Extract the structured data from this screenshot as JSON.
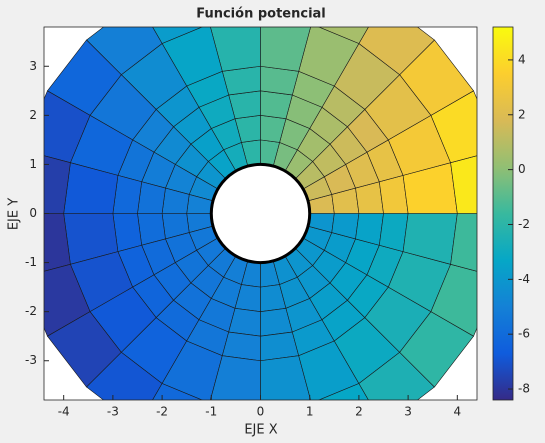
{
  "chart_data": {
    "type": "surface",
    "title": "Función potencial",
    "xlabel": "EJE X",
    "ylabel": "EJE Y",
    "xlim": [
      -4.4,
      4.4
    ],
    "ylim": [
      -3.8,
      3.8
    ],
    "xticks": [
      -4,
      -3,
      -2,
      -1,
      0,
      1,
      2,
      3,
      4
    ],
    "yticks": [
      -3,
      -2,
      -1,
      0,
      1,
      2,
      3
    ],
    "r_edges": [
      1,
      1.5,
      2,
      2.5,
      3,
      4,
      5
    ],
    "theta_edges": [
      0,
      15,
      30,
      45,
      60,
      75,
      90,
      105,
      120,
      135,
      150,
      165,
      180,
      195,
      210,
      225,
      240,
      255,
      270,
      285,
      300,
      315,
      330,
      345,
      360
    ],
    "z": [
      [
        1.9,
        2.2,
        2.5,
        3.0,
        3.6,
        4.5
      ],
      [
        1.5,
        1.8,
        2.1,
        2.5,
        3.1,
        4.0
      ],
      [
        1.0,
        1.2,
        1.5,
        1.8,
        2.3,
        3.1
      ],
      [
        0.3,
        0.5,
        0.7,
        1.0,
        1.4,
        2.0
      ],
      [
        -0.4,
        -0.3,
        -0.1,
        0.0,
        0.3,
        0.6
      ],
      [
        -1.2,
        -1.1,
        -1.1,
        -1.0,
        -0.9,
        -0.8
      ],
      [
        -2.0,
        -2.0,
        -2.1,
        -2.1,
        -2.2,
        -2.3
      ],
      [
        -2.8,
        -2.9,
        -3.0,
        -3.2,
        -3.4,
        -3.8
      ],
      [
        -3.5,
        -3.6,
        -3.9,
        -4.1,
        -4.5,
        -5.1
      ],
      [
        -4.1,
        -4.3,
        -4.6,
        -5.0,
        -5.5,
        -6.2
      ],
      [
        -4.6,
        -4.9,
        -5.2,
        -5.6,
        -6.2,
        -7.1
      ],
      [
        -5.0,
        -5.3,
        -5.7,
        -6.1,
        -6.8,
        -7.7
      ],
      [
        -5.3,
        -5.6,
        -5.9,
        -6.4,
        -7.0,
        -8.0
      ],
      [
        -5.4,
        -5.7,
        -6.0,
        -6.4,
        -7.0,
        -7.9
      ],
      [
        -5.4,
        -5.6,
        -5.9,
        -6.3,
        -6.8,
        -7.5
      ],
      [
        -5.3,
        -5.5,
        -5.7,
        -6.0,
        -6.4,
        -6.9
      ],
      [
        -5.1,
        -5.2,
        -5.4,
        -5.5,
        -5.8,
        -6.1
      ],
      [
        -4.9,
        -4.9,
        -4.9,
        -5.0,
        -5.1,
        -5.2
      ],
      [
        -4.6,
        -4.5,
        -4.5,
        -4.4,
        -4.3,
        -4.2
      ],
      [
        -4.3,
        -4.2,
        -4.1,
        -3.9,
        -3.7,
        -3.3
      ],
      [
        -4.1,
        -4.0,
        -3.7,
        -3.5,
        -3.1,
        -2.5
      ],
      [
        -4.0,
        -3.8,
        -3.5,
        -3.2,
        -2.6,
        -1.9
      ],
      [
        -4.0,
        -3.8,
        -3.4,
        -3.0,
        -2.4,
        -1.5
      ],
      [
        -4.1,
        -3.9,
        -3.5,
        -3.1,
        -2.4,
        -1.5
      ]
    ],
    "clim": [
      -8.4,
      5.2
    ],
    "cticks": [
      -8,
      -6,
      -4,
      -2,
      0,
      2,
      4
    ],
    "colormap": [
      "#352a87",
      "#0f5cdd",
      "#1481d6",
      "#06a7c6",
      "#38b99e",
      "#92bf73",
      "#d9ba56",
      "#fcce2e",
      "#f9fb0e"
    ]
  }
}
